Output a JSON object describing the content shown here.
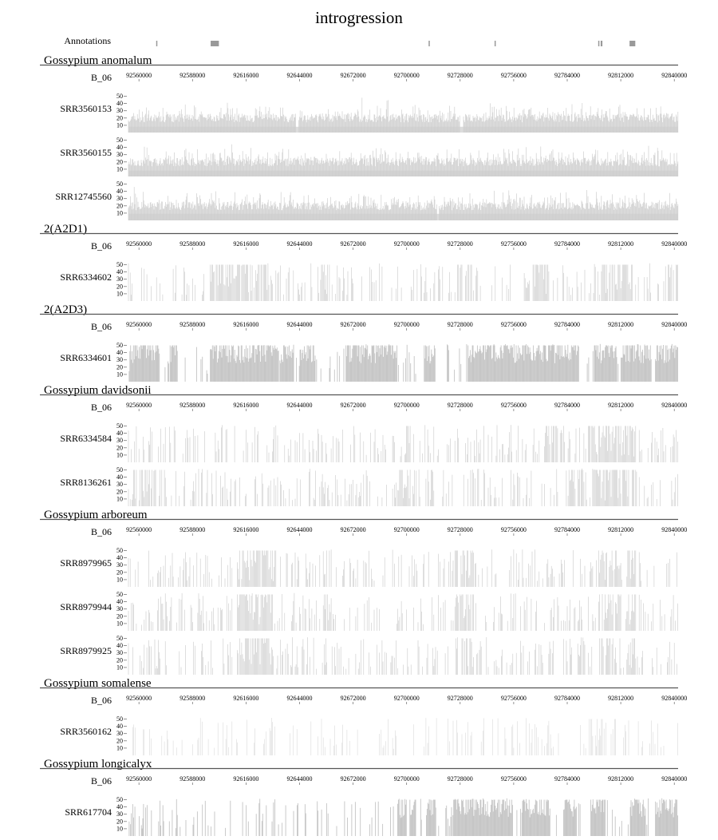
{
  "chart_data": {
    "type": "area",
    "title": "introgression",
    "annotations_label": "Annotations",
    "annotations": [
      {
        "start": 92569000,
        "end": 92569600
      },
      {
        "start": 92597500,
        "end": 92601800
      },
      {
        "start": 92711500,
        "end": 92712100
      },
      {
        "start": 92746000,
        "end": 92746400
      },
      {
        "start": 92800200,
        "end": 92800800
      },
      {
        "start": 92801500,
        "end": 92802400
      },
      {
        "start": 92816600,
        "end": 92819600
      }
    ],
    "x_range": [
      92554500,
      92842000
    ],
    "x_ticks": [
      "92560000",
      "92588000",
      "92616000",
      "92644000",
      "92672000",
      "92700000",
      "92728000",
      "92756000",
      "92784000",
      "92812000",
      "92840000"
    ],
    "y_ticks": [
      "50",
      "40",
      "30",
      "20",
      "10"
    ],
    "ylim": [
      0,
      55
    ],
    "chromosome": "B_06",
    "groups": [
      {
        "name": "Gossypium anomalum",
        "tracks": [
          {
            "sample": "SRR3560153",
            "pattern": "dense",
            "seed": 11,
            "base": 8,
            "dips": [
              [
                92642000,
                92643500
              ],
              [
                92728000,
                92729500
              ]
            ]
          },
          {
            "sample": "SRR3560155",
            "pattern": "dense",
            "seed": 23,
            "base": 8,
            "dips": []
          },
          {
            "sample": "SRR12745560",
            "pattern": "dense",
            "seed": 37,
            "base": 9,
            "dips": [
              [
                92716000,
                92717000
              ]
            ]
          }
        ]
      },
      {
        "name": "2(A2D1)",
        "tracks": [
          {
            "sample": "SRR6334602",
            "pattern": "sparse",
            "seed": 41,
            "regions": [
              [
                92597000,
                92616000,
                0.6
              ],
              [
                92612000,
                92630000,
                0.5
              ],
              [
                92655000,
                92660000,
                0.5
              ],
              [
                92725000,
                92735000,
                0.4
              ],
              [
                92762000,
                92775000,
                0.55
              ],
              [
                92800000,
                92812000,
                0.5
              ],
              [
                92812000,
                92818000,
                0.7
              ],
              [
                92836000,
                92842000,
                0.5
              ]
            ]
          }
        ]
      },
      {
        "name": "2(A2D3)",
        "tracks": [
          {
            "sample": "SRR6334601",
            "pattern": "blocks",
            "seed": 53,
            "blocks": [
              [
                92555000,
                92571000
              ],
              [
                92576000,
                92580000
              ],
              [
                92597000,
                92633000
              ],
              [
                92633500,
                92641000
              ],
              [
                92644000,
                92652000
              ],
              [
                92668000,
                92695000
              ],
              [
                92709000,
                92715000
              ],
              [
                92732000,
                92790000
              ],
              [
                92798000,
                92810000
              ],
              [
                92812000,
                92828000
              ],
              [
                92830000,
                92842000
              ]
            ]
          }
        ]
      },
      {
        "name": "Gossypium davidsonii",
        "tracks": [
          {
            "sample": "SRR6334584",
            "pattern": "sparse",
            "seed": 61,
            "regions": [
              [
                92699000,
                92702000,
                0.8
              ],
              [
                92772000,
                92779000,
                0.55
              ],
              [
                92795000,
                92812000,
                0.5
              ],
              [
                92812000,
                92820000,
                0.65
              ]
            ]
          },
          {
            "sample": "SRR8136261",
            "pattern": "sparse",
            "seed": 67,
            "regions": [
              [
                92556000,
                92575000,
                0.45
              ],
              [
                92696000,
                92701000,
                0.7
              ],
              [
                92784000,
                92795000,
                0.5
              ],
              [
                92797000,
                92812000,
                0.7
              ],
              [
                92812000,
                92820000,
                0.5
              ]
            ]
          }
        ]
      },
      {
        "name": "Gossypium arboreum",
        "tracks": [
          {
            "sample": "SRR8979965",
            "pattern": "sparse",
            "seed": 71,
            "regions": [
              [
                92611000,
                92632000,
                0.6
              ],
              [
                92656000,
                92660000,
                0.5
              ],
              [
                92725000,
                92735000,
                0.4
              ],
              [
                92800000,
                92812000,
                0.45
              ],
              [
                92815000,
                92820000,
                0.8
              ]
            ]
          },
          {
            "sample": "SRR8979944",
            "pattern": "sparse",
            "seed": 79,
            "regions": [
              [
                92611000,
                92630000,
                0.65
              ],
              [
                92656000,
                92660000,
                0.5
              ],
              [
                92725000,
                92735000,
                0.4
              ],
              [
                92800000,
                92812000,
                0.5
              ],
              [
                92815000,
                92820000,
                0.8
              ]
            ]
          },
          {
            "sample": "SRR8979925",
            "pattern": "sparse",
            "seed": 83,
            "regions": [
              [
                92611000,
                92630000,
                0.6
              ],
              [
                92656000,
                92660000,
                0.5
              ],
              [
                92725000,
                92735000,
                0.4
              ],
              [
                92800000,
                92812000,
                0.45
              ],
              [
                92815000,
                92820000,
                0.8
              ]
            ]
          }
        ]
      },
      {
        "name": "Gossypium somalense",
        "tracks": [
          {
            "sample": "SRR3560162",
            "pattern": "faint",
            "seed": 89,
            "regions": [
              [
                92795000,
                92810000,
                0.5
              ]
            ]
          }
        ]
      },
      {
        "name": "Gossypium longicalyx",
        "tracks": [
          {
            "sample": "SRR617704",
            "pattern": "blocks",
            "seed": 97,
            "blocks": [
              [
                92695000,
                92700000
              ],
              [
                92701500,
                92705000
              ],
              [
                92710000,
                92715000
              ],
              [
                92724000,
                92755500
              ],
              [
                92760000,
                92775000
              ],
              [
                92782000,
                92789000
              ],
              [
                92796000,
                92804000
              ],
              [
                92817000,
                92825000
              ],
              [
                92830000,
                92842000
              ]
            ]
          }
        ]
      }
    ]
  }
}
